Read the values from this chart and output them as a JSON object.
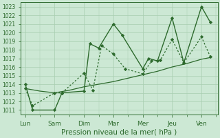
{
  "xlabel": "Pression niveau de la mer( hPa )",
  "x_labels": [
    "Lun",
    "Sam",
    "Dim",
    "Mar",
    "Mer",
    "Jeu",
    "Ven"
  ],
  "ylim": [
    1010.5,
    1023.5
  ],
  "yticks": [
    1011,
    1012,
    1013,
    1014,
    1015,
    1016,
    1017,
    1018,
    1019,
    1020,
    1021,
    1022,
    1023
  ],
  "line1_x": [
    0,
    0.25,
    1.0,
    1.25,
    2.0,
    2.2,
    2.5,
    3.0,
    3.3,
    4.0,
    4.2,
    4.5,
    5.0,
    5.4,
    6.0,
    6.3
  ],
  "line1_y": [
    1014,
    1011,
    1011,
    1013,
    1013.2,
    1018.7,
    1018.2,
    1021,
    1019.7,
    1015.8,
    1017,
    1016.7,
    1021.7,
    1016.5,
    1023,
    1021.2
  ],
  "line2_x": [
    0,
    0.25,
    1.0,
    1.25,
    2.0,
    2.3,
    2.6,
    3.0,
    3.4,
    4.0,
    4.3,
    4.6,
    5.0,
    5.4,
    6.0,
    6.3
  ],
  "line2_y": [
    1013.5,
    1011.5,
    1013,
    1013,
    1015.3,
    1013.3,
    1018.5,
    1017.5,
    1015.8,
    1015.2,
    1016.7,
    1016.8,
    1019.2,
    1016.5,
    1019.5,
    1017.2
  ],
  "line3_x": [
    0,
    0.5,
    1.0,
    1.5,
    2.0,
    2.5,
    3.0,
    3.5,
    4.0,
    4.5,
    5.0,
    5.5,
    6.0,
    6.3
  ],
  "line3_y": [
    1013.5,
    1013.2,
    1013.0,
    1013.3,
    1013.7,
    1014.0,
    1014.3,
    1014.7,
    1015.1,
    1015.5,
    1016.0,
    1016.4,
    1016.9,
    1017.1
  ],
  "line_color": "#2d6a2d",
  "bg_color": "#cce8d4",
  "grid_color": "#a8cdb0",
  "tick_color": "#2d6a2d",
  "label_color": "#2d6a2d"
}
